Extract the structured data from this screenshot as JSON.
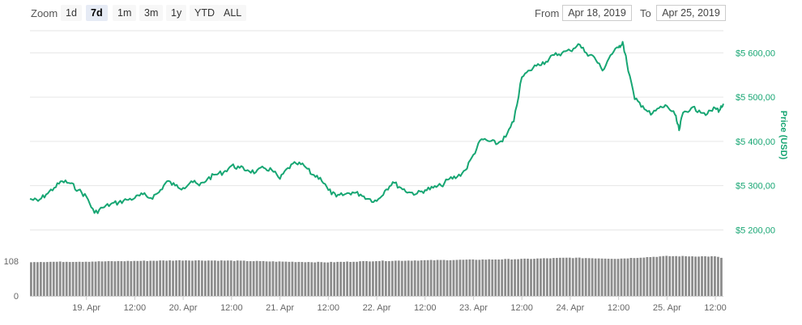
{
  "toolbar": {
    "zoom_label": "Zoom",
    "zoom_buttons": [
      {
        "label": "1d",
        "active": false
      },
      {
        "label": "7d",
        "active": true
      },
      {
        "label": "1m",
        "active": false
      },
      {
        "label": "3m",
        "active": false
      },
      {
        "label": "1y",
        "active": false
      },
      {
        "label": "YTD",
        "active": false
      },
      {
        "label": "ALL",
        "active": false
      }
    ],
    "from_label": "From",
    "from_value": "Apr 18, 2019",
    "to_label": "To",
    "to_value": "Apr 25, 2019"
  },
  "colors": {
    "line": "#17a673",
    "volume": "#8c8c8c",
    "grid": "#e6e6e6",
    "axis_text": "#666666"
  },
  "chart_data": [
    {
      "type": "line",
      "title": "",
      "ylabel": "Price (USD)",
      "ylim": [
        5175,
        5650
      ],
      "y_ticks": [
        5200,
        5300,
        5400,
        5500,
        5600
      ],
      "y_tick_labels": [
        "$5 200,00",
        "$5 300,00",
        "$5 400,00",
        "$5 500,00",
        "$5 600,00"
      ],
      "x_range": [
        "2019-04-18 10:00",
        "2019-04-25 14:00"
      ],
      "x_tick_labels": [
        "19. Apr",
        "12:00",
        "20. Apr",
        "12:00",
        "21. Apr",
        "12:00",
        "22. Apr",
        "12:00",
        "23. Apr",
        "12:00",
        "24. Apr",
        "12:00",
        "25. Apr",
        "12:00"
      ],
      "x_ticks": [
        "2019-04-19 00:00",
        "2019-04-19 12:00",
        "2019-04-20 00:00",
        "2019-04-20 12:00",
        "2019-04-21 00:00",
        "2019-04-21 12:00",
        "2019-04-22 00:00",
        "2019-04-22 12:00",
        "2019-04-23 00:00",
        "2019-04-23 12:00",
        "2019-04-24 00:00",
        "2019-04-24 12:00",
        "2019-04-25 00:00",
        "2019-04-25 12:00"
      ],
      "series": [
        {
          "values": [
            [
              "2019-04-18 10:00",
              5270
            ],
            [
              "2019-04-18 12:00",
              5265
            ],
            [
              "2019-04-18 14:00",
              5280
            ],
            [
              "2019-04-18 16:00",
              5295
            ],
            [
              "2019-04-18 18:00",
              5310
            ],
            [
              "2019-04-18 20:00",
              5305
            ],
            [
              "2019-04-18 22:00",
              5290
            ],
            [
              "2019-04-19 00:00",
              5275
            ],
            [
              "2019-04-19 02:00",
              5238
            ],
            [
              "2019-04-19 04:00",
              5250
            ],
            [
              "2019-04-19 06:00",
              5258
            ],
            [
              "2019-04-19 08:00",
              5262
            ],
            [
              "2019-04-19 10:00",
              5268
            ],
            [
              "2019-04-19 12:00",
              5272
            ],
            [
              "2019-04-19 14:00",
              5280
            ],
            [
              "2019-04-19 16:00",
              5272
            ],
            [
              "2019-04-19 18:00",
              5285
            ],
            [
              "2019-04-19 20:00",
              5310
            ],
            [
              "2019-04-19 22:00",
              5300
            ],
            [
              "2019-04-20 00:00",
              5295
            ],
            [
              "2019-04-20 02:00",
              5310
            ],
            [
              "2019-04-20 04:00",
              5300
            ],
            [
              "2019-04-20 06:00",
              5315
            ],
            [
              "2019-04-20 08:00",
              5325
            ],
            [
              "2019-04-20 10:00",
              5330
            ],
            [
              "2019-04-20 12:00",
              5345
            ],
            [
              "2019-04-20 14:00",
              5340
            ],
            [
              "2019-04-20 16:00",
              5335
            ],
            [
              "2019-04-20 18:00",
              5330
            ],
            [
              "2019-04-20 20:00",
              5340
            ],
            [
              "2019-04-20 22:00",
              5335
            ],
            [
              "2019-04-21 00:00",
              5315
            ],
            [
              "2019-04-21 02:00",
              5340
            ],
            [
              "2019-04-21 04:00",
              5350
            ],
            [
              "2019-04-21 06:00",
              5345
            ],
            [
              "2019-04-21 08:00",
              5325
            ],
            [
              "2019-04-21 10:00",
              5318
            ],
            [
              "2019-04-21 12:00",
              5290
            ],
            [
              "2019-04-21 14:00",
              5275
            ],
            [
              "2019-04-21 16:00",
              5280
            ],
            [
              "2019-04-21 18:00",
              5285
            ],
            [
              "2019-04-21 20:00",
              5280
            ],
            [
              "2019-04-21 22:00",
              5270
            ],
            [
              "2019-04-22 00:00",
              5265
            ],
            [
              "2019-04-22 02:00",
              5288
            ],
            [
              "2019-04-22 04:00",
              5308
            ],
            [
              "2019-04-22 06:00",
              5295
            ],
            [
              "2019-04-22 08:00",
              5285
            ],
            [
              "2019-04-22 10:00",
              5282
            ],
            [
              "2019-04-22 12:00",
              5290
            ],
            [
              "2019-04-22 14:00",
              5295
            ],
            [
              "2019-04-22 16:00",
              5300
            ],
            [
              "2019-04-22 18:00",
              5315
            ],
            [
              "2019-04-22 20:00",
              5320
            ],
            [
              "2019-04-22 22:00",
              5335
            ],
            [
              "2019-04-23 00:00",
              5370
            ],
            [
              "2019-04-23 02:00",
              5405
            ],
            [
              "2019-04-23 04:00",
              5400
            ],
            [
              "2019-04-23 06:00",
              5395
            ],
            [
              "2019-04-23 08:00",
              5410
            ],
            [
              "2019-04-23 10:00",
              5445
            ],
            [
              "2019-04-23 12:00",
              5545
            ],
            [
              "2019-04-23 14:00",
              5560
            ],
            [
              "2019-04-23 16:00",
              5575
            ],
            [
              "2019-04-23 18:00",
              5580
            ],
            [
              "2019-04-23 20:00",
              5595
            ],
            [
              "2019-04-23 22:00",
              5600
            ],
            [
              "2019-04-24 00:00",
              5605
            ],
            [
              "2019-04-24 02:00",
              5620
            ],
            [
              "2019-04-24 04:00",
              5600
            ],
            [
              "2019-04-24 06:00",
              5590
            ],
            [
              "2019-04-24 08:00",
              5560
            ],
            [
              "2019-04-24 10:00",
              5595
            ],
            [
              "2019-04-24 12:00",
              5612
            ],
            [
              "2019-04-24 13:00",
              5625
            ],
            [
              "2019-04-24 14:00",
              5580
            ],
            [
              "2019-04-24 16:00",
              5495
            ],
            [
              "2019-04-24 18:00",
              5480
            ],
            [
              "2019-04-24 20:00",
              5460
            ],
            [
              "2019-04-24 22:00",
              5475
            ],
            [
              "2019-04-25 00:00",
              5480
            ],
            [
              "2019-04-25 02:00",
              5460
            ],
            [
              "2019-04-25 03:00",
              5425
            ],
            [
              "2019-04-25 04:00",
              5465
            ],
            [
              "2019-04-25 06:00",
              5475
            ],
            [
              "2019-04-25 08:00",
              5470
            ],
            [
              "2019-04-25 10:00",
              5462
            ],
            [
              "2019-04-25 12:00",
              5475
            ],
            [
              "2019-04-25 13:00",
              5470
            ],
            [
              "2019-04-25 14:00",
              5485
            ]
          ]
        }
      ]
    },
    {
      "type": "bar",
      "title": "",
      "y_tick_labels": [
        "108",
        "0"
      ],
      "y_ticks": [
        108,
        0
      ],
      "ylim": [
        0,
        160
      ],
      "x_range": [
        "2019-04-18 10:00",
        "2019-04-25 14:00"
      ],
      "values_profile": [
        [
          "2019-04-18 10:00",
          105
        ],
        [
          "2019-04-19 00:00",
          106
        ],
        [
          "2019-04-20 00:00",
          110
        ],
        [
          "2019-04-20 12:00",
          109
        ],
        [
          "2019-04-21 00:00",
          106
        ],
        [
          "2019-04-21 12:00",
          104
        ],
        [
          "2019-04-22 00:00",
          108
        ],
        [
          "2019-04-22 12:00",
          110
        ],
        [
          "2019-04-23 00:00",
          112
        ],
        [
          "2019-04-23 12:00",
          114
        ],
        [
          "2019-04-24 00:00",
          118
        ],
        [
          "2019-04-24 12:00",
          115
        ],
        [
          "2019-04-25 00:00",
          123
        ],
        [
          "2019-04-25 12:00",
          122
        ],
        [
          "2019-04-25 14:00",
          117
        ]
      ]
    }
  ]
}
